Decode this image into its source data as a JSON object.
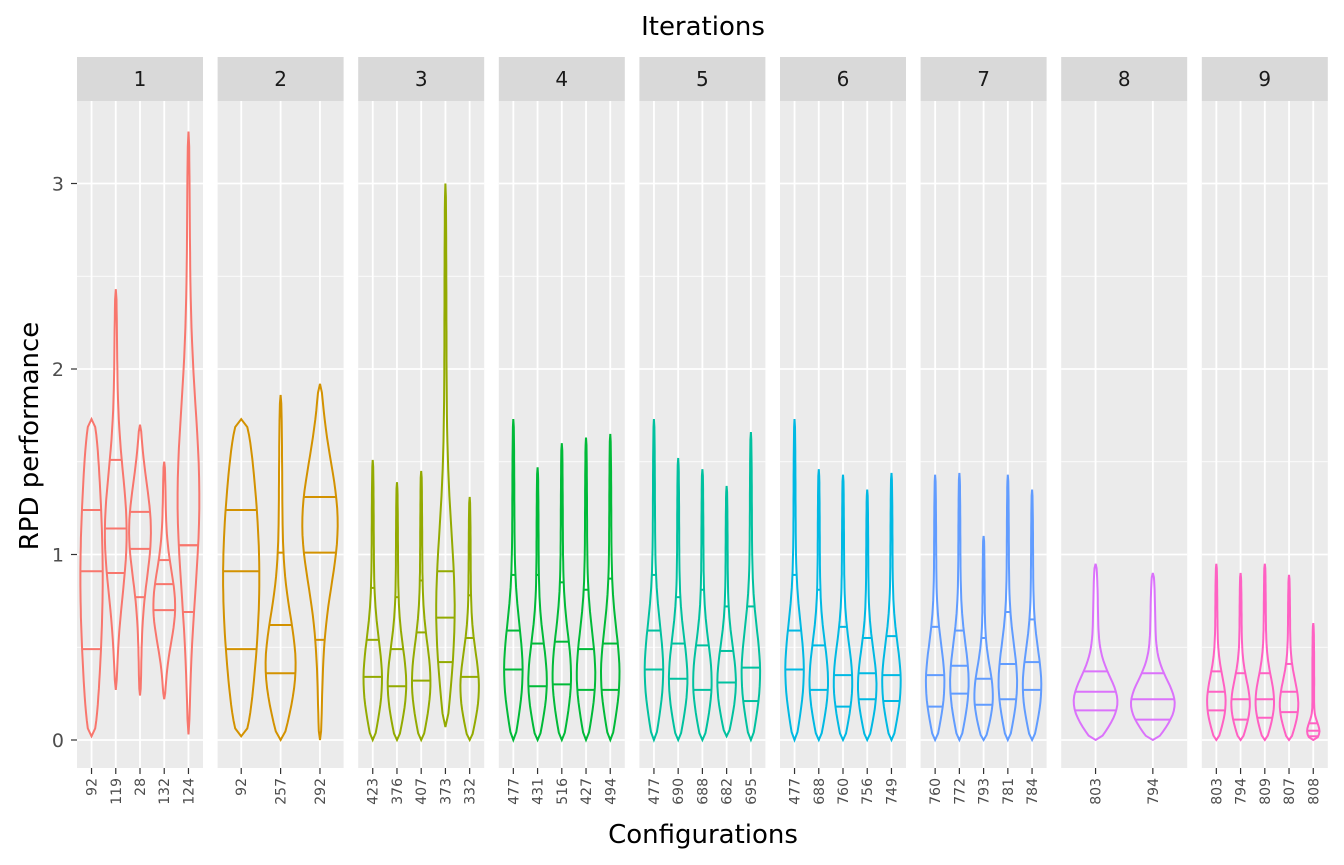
{
  "chart_data": {
    "type": "violin",
    "title": "Iterations",
    "xlabel": "Configurations",
    "ylabel": "RPD performance",
    "ylim": [
      -0.15,
      3.45
    ],
    "yticks": [
      0,
      1,
      2,
      3
    ],
    "grid": true,
    "legend": "none",
    "panels": [
      {
        "label": "1",
        "color": "#F8766D",
        "configs": [
          {
            "id": "92",
            "min": 0.02,
            "max": 1.73,
            "q": [
              0.49,
              0.91,
              1.24
            ],
            "shape": "uniform"
          },
          {
            "id": "119",
            "min": 0.27,
            "max": 2.43,
            "q": [
              0.9,
              1.14,
              1.51
            ],
            "shape": "mid"
          },
          {
            "id": "28",
            "min": 0.24,
            "max": 1.7,
            "q": [
              0.77,
              1.03,
              1.23
            ],
            "shape": "high"
          },
          {
            "id": "132",
            "min": 0.22,
            "max": 1.5,
            "q": [
              0.7,
              0.84,
              0.97
            ],
            "shape": "mid"
          },
          {
            "id": "124",
            "min": 0.03,
            "max": 3.28,
            "q": [
              0.69,
              1.05,
              1.05
            ],
            "shape": "mid"
          }
        ]
      },
      {
        "label": "2",
        "color": "#D39200",
        "configs": [
          {
            "id": "92",
            "min": 0.02,
            "max": 1.73,
            "q": [
              0.49,
              0.91,
              1.24
            ],
            "shape": "uniform"
          },
          {
            "id": "257",
            "min": 0.0,
            "max": 1.86,
            "q": [
              0.36,
              0.62,
              1.01
            ],
            "shape": "low"
          },
          {
            "id": "292",
            "min": 0.0,
            "max": 1.92,
            "q": [
              0.54,
              1.01,
              1.31
            ],
            "shape": "high"
          }
        ]
      },
      {
        "label": "3",
        "color": "#93AA00",
        "configs": [
          {
            "id": "423",
            "min": 0.0,
            "max": 1.51,
            "q": [
              0.34,
              0.54,
              0.82
            ],
            "shape": "low"
          },
          {
            "id": "376",
            "min": 0.0,
            "max": 1.39,
            "q": [
              0.29,
              0.49,
              0.77
            ],
            "shape": "low"
          },
          {
            "id": "407",
            "min": 0.0,
            "max": 1.45,
            "q": [
              0.32,
              0.58,
              0.86
            ],
            "shape": "low"
          },
          {
            "id": "373",
            "min": 0.07,
            "max": 3.0,
            "q": [
              0.42,
              0.66,
              0.91
            ],
            "shape": "low"
          },
          {
            "id": "332",
            "min": 0.0,
            "max": 1.31,
            "q": [
              0.34,
              0.55,
              0.78
            ],
            "shape": "low"
          }
        ]
      },
      {
        "label": "4",
        "color": "#00BA38",
        "configs": [
          {
            "id": "477",
            "min": 0.0,
            "max": 1.73,
            "q": [
              0.38,
              0.59,
              0.89
            ],
            "shape": "low"
          },
          {
            "id": "431",
            "min": 0.0,
            "max": 1.47,
            "q": [
              0.29,
              0.52,
              0.89
            ],
            "shape": "low"
          },
          {
            "id": "516",
            "min": 0.0,
            "max": 1.6,
            "q": [
              0.3,
              0.53,
              0.85
            ],
            "shape": "low"
          },
          {
            "id": "427",
            "min": 0.0,
            "max": 1.63,
            "q": [
              0.27,
              0.49,
              0.81
            ],
            "shape": "low"
          },
          {
            "id": "494",
            "min": 0.0,
            "max": 1.65,
            "q": [
              0.27,
              0.52,
              0.87
            ],
            "shape": "low"
          }
        ]
      },
      {
        "label": "5",
        "color": "#00C19F",
        "configs": [
          {
            "id": "477",
            "min": 0.0,
            "max": 1.73,
            "q": [
              0.38,
              0.59,
              0.89
            ],
            "shape": "low"
          },
          {
            "id": "690",
            "min": 0.0,
            "max": 1.52,
            "q": [
              0.33,
              0.52,
              0.77
            ],
            "shape": "low"
          },
          {
            "id": "688",
            "min": 0.0,
            "max": 1.46,
            "q": [
              0.27,
              0.51,
              0.81
            ],
            "shape": "low"
          },
          {
            "id": "682",
            "min": 0.02,
            "max": 1.37,
            "q": [
              0.31,
              0.48,
              0.72
            ],
            "shape": "low"
          },
          {
            "id": "695",
            "min": 0.0,
            "max": 1.66,
            "q": [
              0.21,
              0.39,
              0.72
            ],
            "shape": "low"
          }
        ]
      },
      {
        "label": "6",
        "color": "#00B9E3",
        "configs": [
          {
            "id": "477",
            "min": 0.0,
            "max": 1.73,
            "q": [
              0.38,
              0.59,
              0.89
            ],
            "shape": "low"
          },
          {
            "id": "688",
            "min": 0.0,
            "max": 1.46,
            "q": [
              0.27,
              0.51,
              0.81
            ],
            "shape": "low"
          },
          {
            "id": "760",
            "min": 0.0,
            "max": 1.43,
            "q": [
              0.18,
              0.35,
              0.61
            ],
            "shape": "low"
          },
          {
            "id": "756",
            "min": 0.0,
            "max": 1.35,
            "q": [
              0.22,
              0.36,
              0.55
            ],
            "shape": "low"
          },
          {
            "id": "749",
            "min": 0.0,
            "max": 1.44,
            "q": [
              0.21,
              0.35,
              0.56
            ],
            "shape": "low"
          }
        ]
      },
      {
        "label": "7",
        "color": "#619CFF",
        "configs": [
          {
            "id": "760",
            "min": 0.0,
            "max": 1.43,
            "q": [
              0.18,
              0.35,
              0.61
            ],
            "shape": "low"
          },
          {
            "id": "772",
            "min": 0.0,
            "max": 1.44,
            "q": [
              0.25,
              0.4,
              0.59
            ],
            "shape": "low"
          },
          {
            "id": "793",
            "min": 0.0,
            "max": 1.1,
            "q": [
              0.19,
              0.33,
              0.55
            ],
            "shape": "low"
          },
          {
            "id": "781",
            "min": 0.0,
            "max": 1.43,
            "q": [
              0.22,
              0.41,
              0.69
            ],
            "shape": "low"
          },
          {
            "id": "784",
            "min": 0.0,
            "max": 1.35,
            "q": [
              0.27,
              0.42,
              0.65
            ],
            "shape": "low"
          }
        ]
      },
      {
        "label": "8",
        "color": "#DB72FB",
        "configs": [
          {
            "id": "803",
            "min": 0.0,
            "max": 0.95,
            "q": [
              0.16,
              0.26,
              0.37
            ],
            "shape": "low"
          },
          {
            "id": "794",
            "min": 0.0,
            "max": 0.9,
            "q": [
              0.11,
              0.22,
              0.36
            ],
            "shape": "low"
          }
        ]
      },
      {
        "label": "9",
        "color": "#FF61C3",
        "configs": [
          {
            "id": "803",
            "min": 0.0,
            "max": 0.95,
            "q": [
              0.16,
              0.26,
              0.37
            ],
            "shape": "low"
          },
          {
            "id": "794",
            "min": 0.0,
            "max": 0.9,
            "q": [
              0.11,
              0.22,
              0.36
            ],
            "shape": "low"
          },
          {
            "id": "809",
            "min": 0.0,
            "max": 0.95,
            "q": [
              0.12,
              0.22,
              0.36
            ],
            "shape": "low"
          },
          {
            "id": "807",
            "min": 0.0,
            "max": 0.89,
            "q": [
              0.15,
              0.26,
              0.41
            ],
            "shape": "low"
          },
          {
            "id": "808",
            "min": 0.0,
            "max": 0.63,
            "q": [
              0.02,
              0.05,
              0.09
            ],
            "shape": "verylow"
          }
        ]
      }
    ]
  }
}
